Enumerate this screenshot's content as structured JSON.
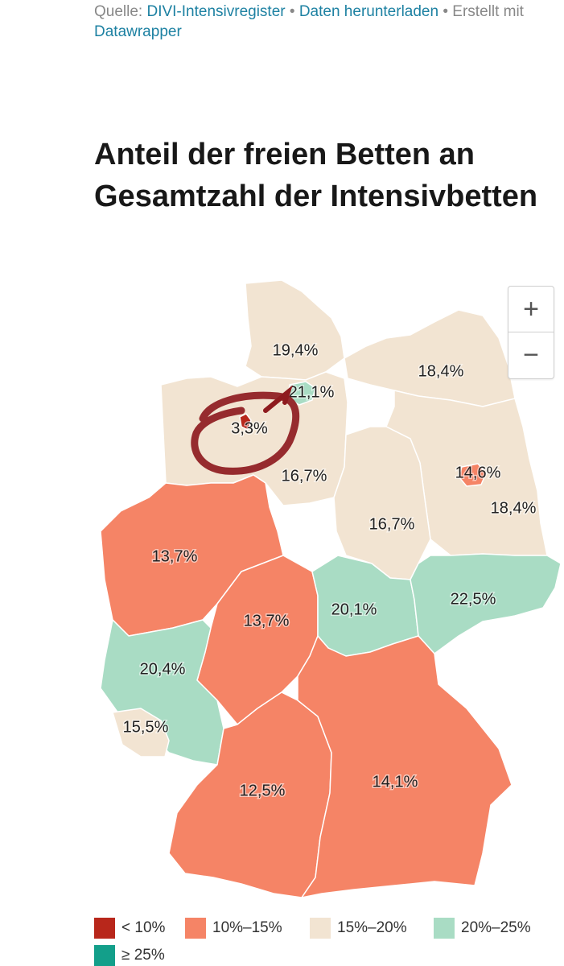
{
  "source": {
    "prefix": "Quelle: ",
    "link1": "DIVI-Intensivregister",
    "sep1": " • ",
    "link2": "Daten herunterladen",
    "sep2": " • Erstellt mit ",
    "link3": "Datawrapper"
  },
  "title": "Anteil der freien Betten an Gesamtzahl der Intensivbetten",
  "zoom": {
    "in": "+",
    "out": "−"
  },
  "colors": {
    "lt10": "#b8271b",
    "10_15": "#f58466",
    "15_20": "#f2e4d2",
    "20_25": "#a9dcc4",
    "ge25": "#139f8a",
    "annotation": "#8e1b1f",
    "border": "#ffffff"
  },
  "legend": [
    {
      "label": "< 10%",
      "color": "#b8271b"
    },
    {
      "label": "10%–15%",
      "color": "#f58466"
    },
    {
      "label": "15%–20%",
      "color": "#f2e4d2"
    },
    {
      "label": "20%–25%",
      "color": "#a9dcc4"
    },
    {
      "label": "≥ 25%",
      "color": "#139f8a"
    }
  ],
  "regions": [
    {
      "id": "schleswig-holstein",
      "label": "19,4%",
      "value": 19.4
    },
    {
      "id": "hamburg",
      "label": "21,1%",
      "value": 21.1
    },
    {
      "id": "mecklenburg-vorpommern",
      "label": "18,4%",
      "value": 18.4
    },
    {
      "id": "bremen",
      "label": "3,3%",
      "value": 3.3
    },
    {
      "id": "niedersachsen",
      "label": "16,7%",
      "value": 16.7
    },
    {
      "id": "berlin",
      "label": "14,6%",
      "value": 14.6
    },
    {
      "id": "brandenburg",
      "label": "18,4%",
      "value": 18.4
    },
    {
      "id": "sachsen-anhalt",
      "label": "16,7%",
      "value": 16.7
    },
    {
      "id": "nordrhein-westfalen",
      "label": "13,7%",
      "value": 13.7
    },
    {
      "id": "hessen",
      "label": "13,7%",
      "value": 13.7
    },
    {
      "id": "thueringen",
      "label": "20,1%",
      "value": 20.1
    },
    {
      "id": "sachsen",
      "label": "22,5%",
      "value": 22.5
    },
    {
      "id": "rheinland-pfalz",
      "label": "20,4%",
      "value": 20.4
    },
    {
      "id": "saarland",
      "label": "15,5%",
      "value": 15.5
    },
    {
      "id": "baden-wuerttemberg",
      "label": "12,5%",
      "value": 12.5
    },
    {
      "id": "bayern",
      "label": "14,1%",
      "value": 14.1
    }
  ]
}
